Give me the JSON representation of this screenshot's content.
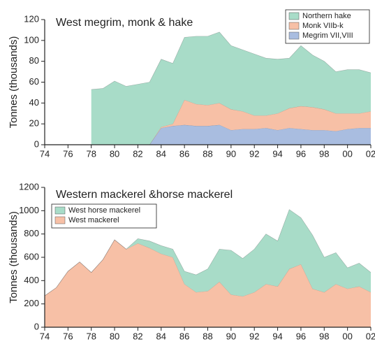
{
  "chart_data": [
    {
      "type": "stacked_area",
      "title": "West megrim, monk & hake",
      "ylabel": "Tonnes (thousands)",
      "x": [
        1978,
        1979,
        1980,
        1981,
        1982,
        1983,
        1984,
        1985,
        1986,
        1987,
        1988,
        1989,
        1990,
        1991,
        1992,
        1993,
        1994,
        1995,
        1996,
        1997,
        1998,
        1999,
        2000,
        2001,
        2002
      ],
      "series": [
        {
          "name": "Megrim VII,VIII",
          "color": "#a9bde0",
          "values": [
            0,
            0,
            0,
            0,
            0,
            0,
            16,
            18,
            19,
            18,
            18,
            19,
            14,
            15,
            15,
            16,
            14,
            16,
            15,
            14,
            14,
            13,
            15,
            16,
            16
          ]
        },
        {
          "name": "Monk VIIb-k",
          "color": "#f7c0a6",
          "values": [
            0,
            0,
            0,
            0,
            0,
            0,
            1,
            2,
            24,
            21,
            20,
            21,
            20,
            17,
            13,
            12,
            16,
            19,
            22,
            22,
            20,
            17,
            15,
            14,
            16
          ]
        },
        {
          "name": "Northern hake",
          "color": "#a8dcc8",
          "values": [
            53,
            54,
            61,
            56,
            58,
            60,
            65,
            58,
            60,
            65,
            66,
            68,
            61,
            59,
            59,
            55,
            52,
            48,
            58,
            50,
            46,
            40,
            42,
            42,
            37
          ]
        }
      ],
      "xlim": [
        1974,
        2002
      ],
      "xticks": [
        {
          "value": 1974,
          "label": "74"
        },
        {
          "value": 1976,
          "label": "76"
        },
        {
          "value": 1978,
          "label": "78"
        },
        {
          "value": 1980,
          "label": "80"
        },
        {
          "value": 1982,
          "label": "82"
        },
        {
          "value": 1984,
          "label": "84"
        },
        {
          "value": 1986,
          "label": "86"
        },
        {
          "value": 1988,
          "label": "88"
        },
        {
          "value": 1990,
          "label": "90"
        },
        {
          "value": 1992,
          "label": "92"
        },
        {
          "value": 1994,
          "label": "94"
        },
        {
          "value": 1996,
          "label": "96"
        },
        {
          "value": 1998,
          "label": "98"
        },
        {
          "value": 2000,
          "label": "00"
        },
        {
          "value": 2002,
          "label": "02"
        }
      ],
      "ylim": [
        0,
        120
      ],
      "yticks": [
        0,
        20,
        40,
        60,
        80,
        100,
        120
      ],
      "legend": "upper right"
    },
    {
      "type": "stacked_area",
      "title": "Western mackerel &horse mackerel",
      "ylabel": "Tonnes (thousands)",
      "x": [
        1974,
        1975,
        1976,
        1977,
        1978,
        1979,
        1980,
        1981,
        1982,
        1983,
        1984,
        1985,
        1986,
        1987,
        1988,
        1989,
        1990,
        1991,
        1992,
        1993,
        1994,
        1995,
        1996,
        1997,
        1998,
        1999,
        2000,
        2001,
        2002
      ],
      "series": [
        {
          "name": "West mackerel",
          "color": "#f7c0a6",
          "values": [
            270,
            340,
            480,
            560,
            470,
            580,
            750,
            670,
            720,
            680,
            630,
            600,
            370,
            300,
            310,
            390,
            280,
            265,
            300,
            370,
            350,
            500,
            540,
            330,
            300,
            370,
            330,
            350,
            300
          ]
        },
        {
          "name": "West horse mackerel",
          "color": "#a8dcc8",
          "values": [
            0,
            0,
            0,
            0,
            0,
            0,
            0,
            0,
            40,
            60,
            70,
            70,
            110,
            150,
            190,
            280,
            380,
            325,
            370,
            430,
            390,
            510,
            400,
            460,
            300,
            270,
            180,
            200,
            170
          ]
        }
      ],
      "xlim": [
        1974,
        2002
      ],
      "xticks": [
        {
          "value": 1974,
          "label": "74"
        },
        {
          "value": 1976,
          "label": "76"
        },
        {
          "value": 1978,
          "label": "78"
        },
        {
          "value": 1980,
          "label": "80"
        },
        {
          "value": 1982,
          "label": "82"
        },
        {
          "value": 1984,
          "label": "84"
        },
        {
          "value": 1986,
          "label": "86"
        },
        {
          "value": 1988,
          "label": "88"
        },
        {
          "value": 1990,
          "label": "90"
        },
        {
          "value": 1992,
          "label": "92"
        },
        {
          "value": 1994,
          "label": "94"
        },
        {
          "value": 1996,
          "label": "96"
        },
        {
          "value": 1998,
          "label": "98"
        },
        {
          "value": 2000,
          "label": "00"
        },
        {
          "value": 2002,
          "label": "02"
        }
      ],
      "ylim": [
        0,
        1200
      ],
      "yticks": [
        0,
        200,
        400,
        600,
        800,
        1000,
        1200
      ],
      "legend": "upper left"
    }
  ]
}
